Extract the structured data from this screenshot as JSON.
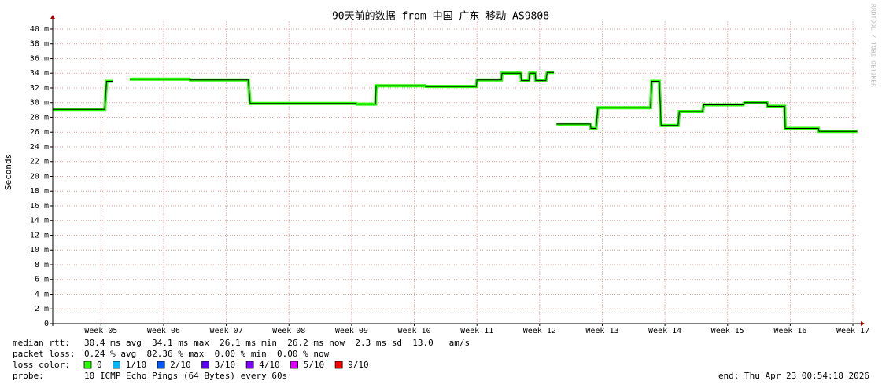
{
  "chart_data": {
    "type": "line",
    "title": "90天前的数据 from 中国 广东 移动 AS9808",
    "y_label": "Seconds",
    "watermark": "RRDTOOL / TOBI OETIKER",
    "xlim": [
      4.23,
      17.1
    ],
    "xticks": [
      {
        "value": 5,
        "label": "Week 05"
      },
      {
        "value": 6,
        "label": "Week 06"
      },
      {
        "value": 7,
        "label": "Week 07"
      },
      {
        "value": 8,
        "label": "Week 08"
      },
      {
        "value": 9,
        "label": "Week 09"
      },
      {
        "value": 10,
        "label": "Week 10"
      },
      {
        "value": 11,
        "label": "Week 11"
      },
      {
        "value": 12,
        "label": "Week 12"
      },
      {
        "value": 13,
        "label": "Week 13"
      },
      {
        "value": 14,
        "label": "Week 14"
      },
      {
        "value": 15,
        "label": "Week 15"
      },
      {
        "value": 16,
        "label": "Week 16"
      },
      {
        "value": 17,
        "label": "Week 17"
      }
    ],
    "ylim": [
      0,
      41
    ],
    "yticks": [
      0,
      {
        "value": 2,
        "label": "2 m"
      },
      {
        "value": 4,
        "label": "4 m"
      },
      {
        "value": 6,
        "label": "6 m"
      },
      {
        "value": 8,
        "label": "8 m"
      },
      {
        "value": 10,
        "label": "10 m"
      },
      {
        "value": 12,
        "label": "12 m"
      },
      {
        "value": 14,
        "label": "14 m"
      },
      {
        "value": 16,
        "label": "16 m"
      },
      {
        "value": 18,
        "label": "18 m"
      },
      {
        "value": 20,
        "label": "20 m"
      },
      {
        "value": 22,
        "label": "22 m"
      },
      {
        "value": 24,
        "label": "24 m"
      },
      {
        "value": 26,
        "label": "26 m"
      },
      {
        "value": 28,
        "label": "28 m"
      },
      {
        "value": 30,
        "label": "30 m"
      },
      {
        "value": 32,
        "label": "32 m"
      },
      {
        "value": 34,
        "label": "34 m"
      },
      {
        "value": 36,
        "label": "36 m"
      },
      {
        "value": 38,
        "label": "38 m"
      },
      {
        "value": 40,
        "label": "40 m"
      }
    ],
    "grid": true,
    "series": [
      {
        "color": "#26ff00",
        "x": [
          4.23,
          5.06,
          5.09,
          5.19,
          5.3,
          5.46,
          6.41,
          6.42,
          7.35,
          7.38,
          9.07,
          9.08,
          9.38,
          9.39,
          10.17,
          10.18,
          10.99,
          11.0,
          11.39,
          11.4,
          11.7,
          11.71,
          11.83,
          11.84,
          11.93,
          11.94,
          12.1,
          12.12,
          12.23,
          12.25,
          12.27,
          12.81,
          12.82,
          12.9,
          12.93,
          13.77,
          13.79,
          13.91,
          13.94,
          14.21,
          14.23,
          14.6,
          14.62,
          15.25,
          15.27,
          15.63,
          15.64,
          15.91,
          15.92,
          16.45,
          16.46,
          17.07
        ],
        "values": [
          29.1,
          29.1,
          32.9,
          32.9,
          null,
          33.2,
          33.2,
          33.1,
          33.1,
          29.9,
          29.9,
          29.8,
          29.8,
          32.3,
          32.3,
          32.2,
          32.2,
          33.1,
          33.1,
          34.0,
          34.0,
          33.0,
          33.0,
          34.0,
          34.0,
          33.0,
          33.0,
          34.1,
          34.1,
          null,
          27.1,
          27.1,
          26.5,
          26.5,
          29.3,
          29.3,
          32.9,
          32.9,
          26.9,
          26.9,
          28.8,
          28.8,
          29.7,
          29.7,
          30.0,
          30.0,
          29.5,
          29.5,
          26.5,
          26.5,
          26.1,
          26.1
        ]
      }
    ],
    "stats": [
      {
        "label": "median rtt:",
        "text": "30.4 ms avg  34.1 ms max  26.1 ms min  26.2 ms now  2.3 ms sd  13.0   am/s"
      },
      {
        "label": "packet loss:",
        "text": "0.24 % avg  82.36 % max  0.00 % min  0.00 % now"
      }
    ],
    "loss_color": {
      "label": "loss color:",
      "entries": [
        {
          "label": "0",
          "color": "#26ff00"
        },
        {
          "label": "1/10",
          "color": "#00b8ff"
        },
        {
          "label": "2/10",
          "color": "#0059ff"
        },
        {
          "label": "3/10",
          "color": "#5e00ff"
        },
        {
          "label": "4/10",
          "color": "#7e00ff"
        },
        {
          "label": "5/10",
          "color": "#dd00ff"
        },
        {
          "label": "9/10",
          "color": "#ff0000"
        }
      ]
    },
    "probe": {
      "label": "probe:",
      "text": "10 ICMP Echo Pings (64 Bytes) every 60s"
    },
    "end": "end: Thu Apr 23 00:54:18 2026"
  }
}
